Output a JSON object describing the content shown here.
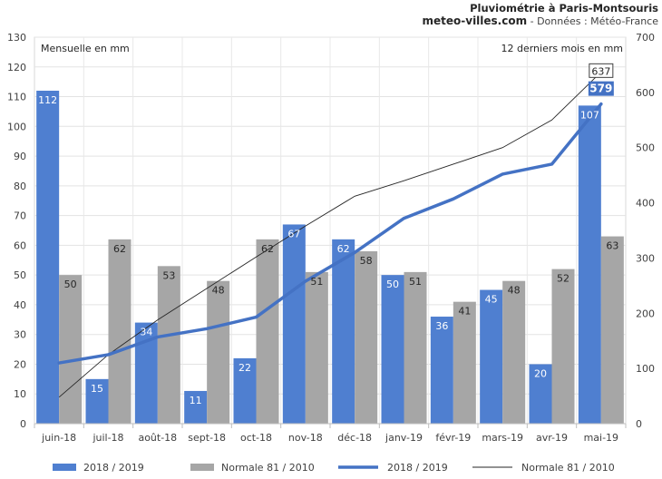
{
  "header": {
    "title": "Pluviométrie à Paris-Montsouris",
    "site": "meteo-villes.com",
    "source": " - Données : Météo-France"
  },
  "chart_data": {
    "type": "bar",
    "categories": [
      "juin-18",
      "juil-18",
      "août-18",
      "sept-18",
      "oct-18",
      "nov-18",
      "déc-18",
      "janv-19",
      "févr-19",
      "mars-19",
      "avr-19",
      "mai-19"
    ],
    "ylabel": "Mensuelle en mm",
    "y2label": "12 derniers mois en mm",
    "ylim": [
      0,
      130
    ],
    "y2lim": [
      0,
      700
    ],
    "yticks": [
      0,
      10,
      20,
      30,
      40,
      50,
      60,
      70,
      80,
      90,
      100,
      110,
      120,
      130
    ],
    "y2ticks": [
      0,
      100,
      200,
      300,
      400,
      500,
      600,
      700
    ],
    "grid": true,
    "legend_position": "bottom",
    "series": [
      {
        "name": "2018 / 2019",
        "type": "bar",
        "axis": "left",
        "color": "#4f7fd0",
        "values": [
          112,
          15,
          34,
          11,
          22,
          67,
          62,
          50,
          36,
          45,
          20,
          107
        ]
      },
      {
        "name": "Normale 81 / 2010",
        "type": "bar",
        "axis": "left",
        "color": "#a6a6a6",
        "values": [
          50,
          62,
          53,
          48,
          62,
          51,
          58,
          51,
          41,
          48,
          52,
          63
        ]
      },
      {
        "name": "2018 / 2019",
        "type": "line",
        "axis": "right",
        "color": "#4472c4",
        "values": [
          110,
          125,
          157,
          172,
          193,
          258,
          310,
          372,
          407,
          452,
          470,
          579
        ],
        "end_label": "579"
      },
      {
        "name": "Normale 81 / 2010",
        "type": "line",
        "axis": "right",
        "color": "#262626",
        "values": [
          48,
          125,
          188,
          245,
          302,
          358,
          412,
          440,
          470,
          500,
          550,
          637
        ],
        "end_label": "637"
      }
    ]
  }
}
